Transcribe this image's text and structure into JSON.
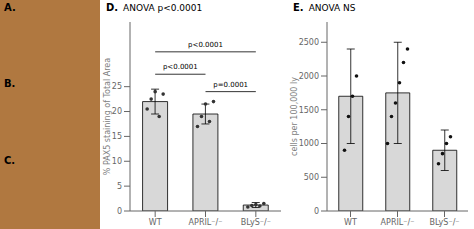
{
  "chart_data": [
    {
      "type": "image",
      "color": "#b07840",
      "annotations": [
        {
          "text": "A."
        }
      ]
    },
    {
      "type": "image",
      "color": "#b07840",
      "annotations": [
        {
          "text": "B."
        }
      ]
    },
    {
      "type": "image",
      "color": "#b07840",
      "annotations": [
        {
          "text": "C."
        }
      ]
    },
    {
      "type": "bar",
      "title": "ANOVA p<0.0001",
      "ylabel": "% PAX5 staining of Total Area",
      "categories": [
        "WT",
        "APRIL⁻/⁻",
        "BLyS⁻/⁻"
      ],
      "values": [
        22.0,
        19.5,
        1.2
      ],
      "errors": [
        2.5,
        2.0,
        0.5
      ],
      "color": "#d8d8d8",
      "dots": {
        "type": "scatter",
        "color": "#333333",
        "values": [
          [
            20.5,
            22.5,
            24.0,
            19.0,
            23.5
          ],
          [
            17.0,
            19.0,
            21.5,
            18.0,
            22.0
          ],
          [
            0.8,
            1.1,
            1.3,
            1.0,
            1.5
          ]
        ]
      },
      "ylim": [
        0,
        38
      ],
      "yticks": [
        0,
        5,
        10,
        15,
        20,
        25
      ],
      "annotations": [
        {
          "text": "D."
        },
        {
          "text": "p<0.0001",
          "from": "WT",
          "to": "APRIL⁻/⁻",
          "y": 27.5
        },
        {
          "text": "p=0.0001",
          "from": "APRIL⁻/⁻",
          "to": "BLyS⁻/⁻",
          "y": 24.0
        },
        {
          "text": "p<0.0001",
          "from": "WT",
          "to": "BLyS⁻/⁻",
          "y": 32.0
        }
      ]
    },
    {
      "type": "bar",
      "title": "ANOVA NS",
      "ylabel": "cells per 100,000 ly",
      "categories": [
        "WT",
        "APRIL⁻/⁻",
        "BLyS⁻/⁻"
      ],
      "values": [
        1700,
        1750,
        900
      ],
      "errors": [
        700,
        750,
        300
      ],
      "color": "#d8d8d8",
      "dots": {
        "type": "scatter",
        "color": "#111111",
        "values": [
          [
            900,
            1400,
            1700,
            2000
          ],
          [
            1000,
            1400,
            1600,
            1900,
            2200,
            2400
          ],
          [
            700,
            850,
            1000,
            1100
          ]
        ]
      },
      "ylim": [
        0,
        2800
      ],
      "yticks": [
        0,
        500,
        1000,
        1500,
        2000,
        2500
      ],
      "annotations": [
        {
          "text": "E."
        }
      ]
    }
  ]
}
